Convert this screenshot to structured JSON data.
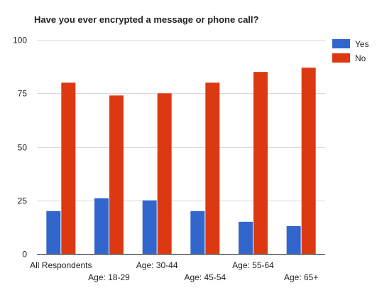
{
  "chart_data": {
    "type": "bar",
    "title": "Have you ever encrypted a message or phone call?",
    "xlabel": "",
    "ylabel": "",
    "ylim": [
      0,
      100
    ],
    "yticks": [
      0,
      25,
      50,
      75,
      100
    ],
    "categories": [
      "All Respondents",
      "Age: 18-29",
      "Age: 30-44",
      "Age: 45-54",
      "Age: 55-64",
      "Age: 65+"
    ],
    "series": [
      {
        "name": "Yes",
        "color": "#3366cc",
        "values": [
          20,
          26,
          25,
          20,
          15,
          13
        ]
      },
      {
        "name": "No",
        "color": "#dc3912",
        "values": [
          80,
          74,
          75,
          80,
          85,
          87
        ]
      }
    ],
    "grid": true,
    "legend": "right"
  }
}
